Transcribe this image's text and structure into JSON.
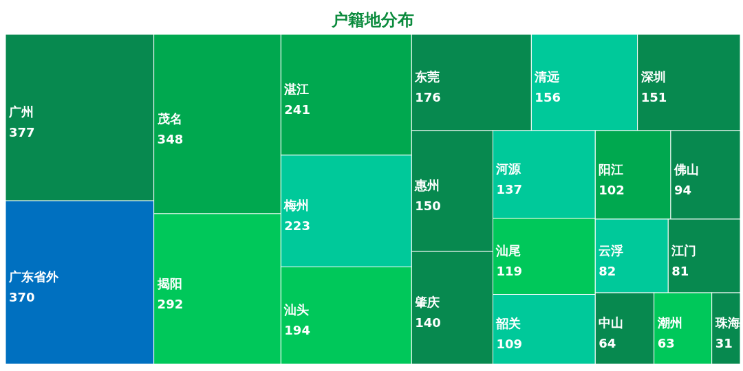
{
  "chart_data": {
    "type": "other",
    "title": "户籍地分布",
    "categories": [
      "广州",
      "广东省外",
      "茂名",
      "揭阳",
      "湛江",
      "梅州",
      "汕头",
      "东莞",
      "清远",
      "深圳",
      "惠州",
      "肇庆",
      "河源",
      "汕尾",
      "韶关",
      "阳江",
      "佛山",
      "云浮",
      "江门",
      "中山",
      "潮州",
      "珠海"
    ],
    "values": [
      377,
      370,
      348,
      292,
      241,
      223,
      194,
      176,
      156,
      151,
      150,
      140,
      137,
      119,
      109,
      102,
      94,
      82,
      81,
      64,
      63,
      31
    ],
    "colors": [
      "#07894f",
      "#0070c0",
      "#00a84f",
      "#00c85a",
      "#00a84f",
      "#00c99a",
      "#00c85a",
      "#07894f",
      "#00c99a",
      "#07894f",
      "#07894f",
      "#07894f",
      "#00c99a",
      "#00c85a",
      "#00c99a",
      "#00a84f",
      "#07894f",
      "#00c99a",
      "#07894f",
      "#07894f",
      "#00c85a",
      "#07894f"
    ],
    "data_labels": true
  }
}
